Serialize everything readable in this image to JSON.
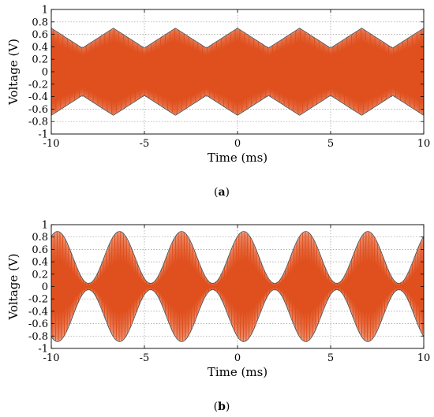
{
  "chart_data": [
    {
      "type": "line",
      "panel_label": "a",
      "xlabel": "Time (ms)",
      "ylabel": "Voltage (V)",
      "xlim": [
        -10,
        10
      ],
      "ylim": [
        -1,
        1
      ],
      "xticks": [
        -10,
        -5,
        0,
        5,
        10
      ],
      "yticks": [
        -1,
        -0.8,
        -0.6,
        -0.4,
        -0.2,
        0,
        0.2,
        0.4,
        0.6,
        0.8,
        1
      ],
      "grid": true,
      "signal": {
        "color": "#e0501e",
        "envelope_period_ms": 3.333,
        "envelope_peak_times_ms": [
          -10,
          -6.667,
          -3.333,
          0,
          3.333,
          6.667,
          10
        ],
        "envelope_max": 0.7,
        "envelope_min": 0.38,
        "carrier_cycles_per_ms": 8
      },
      "envelope": {
        "color": "#555555",
        "upper_peak": 0.7,
        "upper_trough": 0.38,
        "lower_peak": -0.7,
        "lower_trough": -0.38
      }
    },
    {
      "type": "line",
      "panel_label": "b",
      "xlabel": "Time (ms)",
      "ylabel": "Voltage (V)",
      "xlim": [
        -10,
        10
      ],
      "ylim": [
        -1,
        1
      ],
      "xticks": [
        -10,
        -5,
        0,
        5,
        10
      ],
      "yticks": [
        -1,
        -0.8,
        -0.6,
        -0.4,
        -0.2,
        0,
        0.2,
        0.4,
        0.6,
        0.8,
        1
      ],
      "grid": true,
      "signal": {
        "color": "#e0501e",
        "envelope_period_ms": 3.333,
        "envelope_peak_times_ms": [
          -9.667,
          -6.333,
          -3.0,
          0.333,
          3.667,
          7.0
        ],
        "envelope_max": 0.89,
        "envelope_min": 0.05,
        "carrier_cycles_per_ms": 7
      },
      "envelope": {
        "color": "#555555",
        "upper_peak": 0.89,
        "upper_trough": 0.05,
        "lower_peak": -0.89,
        "lower_trough": -0.05
      }
    }
  ],
  "captions": {
    "a_open": "(",
    "a_letter": "a",
    "a_close": ")",
    "b_open": "(",
    "b_letter": "b",
    "b_close": ")"
  }
}
